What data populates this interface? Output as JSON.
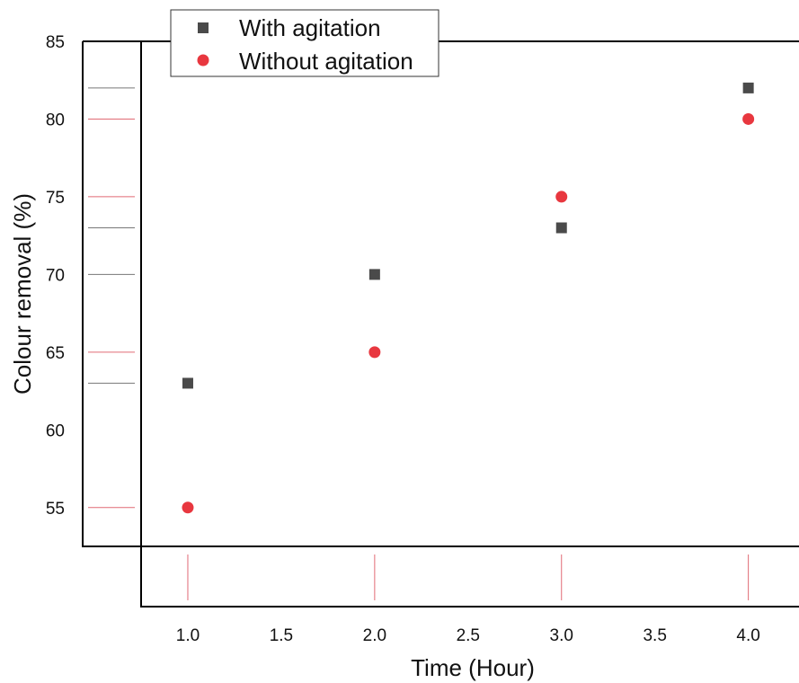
{
  "chart_data": {
    "type": "scatter",
    "title": "",
    "xlabel": "Time (Hour)",
    "ylabel": "Colour removal (%)",
    "xlim": [
      0.75,
      4.3
    ],
    "ylim": [
      52.5,
      85
    ],
    "xticks": [
      "1.0",
      "1.5",
      "2.0",
      "2.5",
      "3.0",
      "3.5",
      "4.0"
    ],
    "yticks": [
      "55",
      "60",
      "65",
      "70",
      "75",
      "80",
      "85"
    ],
    "grid": false,
    "legend_position": "top-left",
    "series": [
      {
        "name": "With agitation",
        "marker": "square",
        "color": "#4a4a4a",
        "x": [
          1.0,
          2.0,
          3.0,
          4.0
        ],
        "y": [
          63,
          70,
          73,
          82
        ]
      },
      {
        "name": "Without agitation",
        "marker": "circle",
        "color": "#e8373f",
        "x": [
          1.0,
          2.0,
          3.0,
          4.0
        ],
        "y": [
          55,
          65,
          75,
          80
        ]
      }
    ]
  }
}
